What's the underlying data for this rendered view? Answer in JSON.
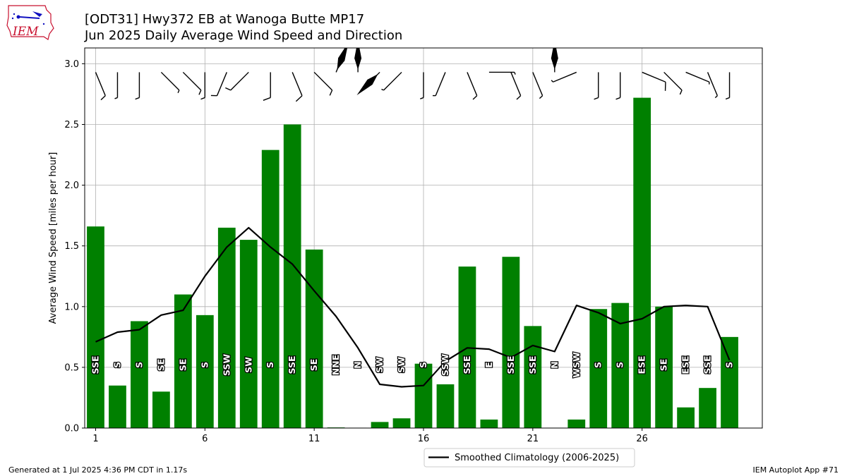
{
  "title_line1": "[ODT31] Hwy372 EB at Wanoga Butte MP17",
  "title_line2": "Jun 2025 Daily Average Wind Speed and Direction",
  "footer_left": "Generated at 1 Jul 2025 4:36 PM CDT in 1.17s",
  "footer_right": "IEM Autoplot App #71",
  "logo_text": "IEM",
  "colors": {
    "bar": "#008000",
    "line": "#000000",
    "grid": "#b0b0b0",
    "logo_red": "#c8102e",
    "logo_blue": "#1010c0"
  },
  "chart_data": {
    "type": "bar",
    "ylabel": "Average Wind Speed [miles per hour]",
    "ylim": [
      0,
      3.13
    ],
    "xlim": [
      0.5,
      31.5
    ],
    "yticks": [
      0.0,
      0.5,
      1.0,
      1.5,
      2.0,
      2.5,
      3.0
    ],
    "ytick_labels": [
      "0.0",
      "0.5",
      "1.0",
      "1.5",
      "2.0",
      "2.5",
      "3.0"
    ],
    "xticks": [
      1,
      6,
      11,
      16,
      21,
      26
    ],
    "xtick_labels": [
      "1",
      "6",
      "11",
      "16",
      "21",
      "26"
    ],
    "grid": true,
    "legend_position": "bottom-center",
    "days": [
      1,
      2,
      3,
      4,
      5,
      6,
      7,
      8,
      9,
      10,
      11,
      12,
      13,
      14,
      15,
      16,
      17,
      18,
      19,
      20,
      21,
      22,
      23,
      24,
      25,
      26,
      27,
      28,
      29,
      30
    ],
    "values": [
      1.66,
      0.35,
      0.88,
      0.3,
      1.1,
      0.93,
      1.65,
      1.55,
      2.29,
      2.5,
      1.47,
      0.005,
      0.003,
      0.05,
      0.08,
      0.53,
      0.36,
      1.33,
      0.07,
      1.41,
      0.84,
      0.003,
      0.07,
      0.98,
      1.03,
      2.72,
      1.0,
      0.17,
      0.33,
      0.75
    ],
    "directions": [
      "SSE",
      "S",
      "S",
      "SE",
      "SE",
      "S",
      "SSW",
      "SW",
      "S",
      "SSE",
      "SE",
      "NNE",
      "N",
      "SW",
      "SW",
      "S",
      "SSW",
      "SSE",
      "E",
      "SSE",
      "SSE",
      "N",
      "WSW",
      "S",
      "S",
      "ESE",
      "SE",
      "ESE",
      "SSE",
      "S"
    ],
    "barb_speeds_knots": [
      1.4,
      0.3,
      0.8,
      0.3,
      1.0,
      0.8,
      1.4,
      1.3,
      2.0,
      2.2,
      1.3,
      0.0,
      0.0,
      0.0,
      0.1,
      0.5,
      0.3,
      1.2,
      0.1,
      1.2,
      0.7,
      0.0,
      0.1,
      0.9,
      0.9,
      2.4,
      0.9,
      0.1,
      0.3,
      0.7
    ],
    "series": [
      {
        "name": "Smoothed Climatology (2006-2025)",
        "type": "line",
        "x": [
          1,
          2,
          3,
          4,
          5,
          6,
          7,
          8,
          9,
          10,
          11,
          12,
          13,
          14,
          15,
          16,
          17,
          18,
          19,
          20,
          21,
          22,
          23,
          24,
          25,
          26,
          27,
          28,
          29,
          30
        ],
        "values": [
          0.71,
          0.79,
          0.81,
          0.93,
          0.97,
          1.25,
          1.49,
          1.65,
          1.49,
          1.35,
          1.13,
          0.92,
          0.66,
          0.36,
          0.34,
          0.35,
          0.55,
          0.66,
          0.65,
          0.58,
          0.68,
          0.63,
          1.01,
          0.95,
          0.86,
          0.9,
          1.0,
          1.01,
          1.0,
          0.56
        ]
      }
    ]
  }
}
